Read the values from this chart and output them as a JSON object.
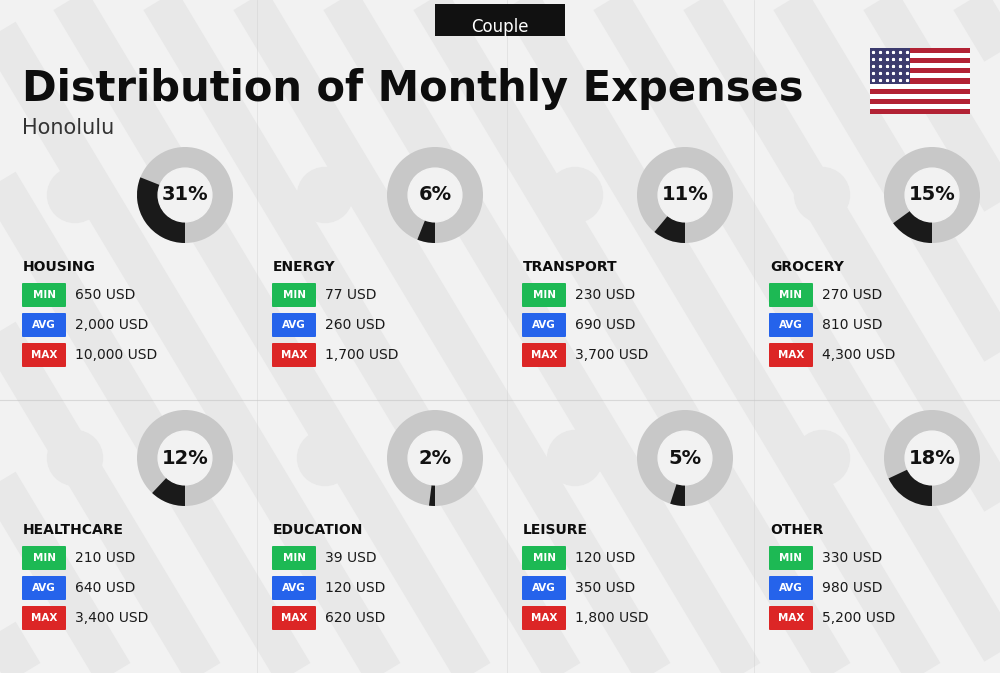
{
  "title": "Distribution of Monthly Expenses",
  "subtitle": "Honolulu",
  "badge": "Couple",
  "bg_color": "#f2f2f2",
  "categories": [
    {
      "name": "HOUSING",
      "pct": 31,
      "min_val": "650 USD",
      "avg_val": "2,000 USD",
      "max_val": "10,000 USD",
      "row": 0,
      "col": 0
    },
    {
      "name": "ENERGY",
      "pct": 6,
      "min_val": "77 USD",
      "avg_val": "260 USD",
      "max_val": "1,700 USD",
      "row": 0,
      "col": 1
    },
    {
      "name": "TRANSPORT",
      "pct": 11,
      "min_val": "230 USD",
      "avg_val": "690 USD",
      "max_val": "3,700 USD",
      "row": 0,
      "col": 2
    },
    {
      "name": "GROCERY",
      "pct": 15,
      "min_val": "270 USD",
      "avg_val": "810 USD",
      "max_val": "4,300 USD",
      "row": 0,
      "col": 3
    },
    {
      "name": "HEALTHCARE",
      "pct": 12,
      "min_val": "210 USD",
      "avg_val": "640 USD",
      "max_val": "3,400 USD",
      "row": 1,
      "col": 0
    },
    {
      "name": "EDUCATION",
      "pct": 2,
      "min_val": "39 USD",
      "avg_val": "120 USD",
      "max_val": "620 USD",
      "row": 1,
      "col": 1
    },
    {
      "name": "LEISURE",
      "pct": 5,
      "min_val": "120 USD",
      "avg_val": "350 USD",
      "max_val": "1,800 USD",
      "row": 1,
      "col": 2
    },
    {
      "name": "OTHER",
      "pct": 18,
      "min_val": "330 USD",
      "avg_val": "980 USD",
      "max_val": "5,200 USD",
      "row": 1,
      "col": 3
    }
  ],
  "min_color": "#1db954",
  "avg_color": "#2563eb",
  "max_color": "#dc2626",
  "donut_active_color": "#1a1a1a",
  "donut_inactive_color": "#c8c8c8",
  "title_fontsize": 30,
  "subtitle_fontsize": 15,
  "badge_fontsize": 12,
  "cat_fontsize": 10,
  "stat_label_fontsize": 7.5,
  "stat_value_fontsize": 10,
  "pct_fontsize": 14
}
